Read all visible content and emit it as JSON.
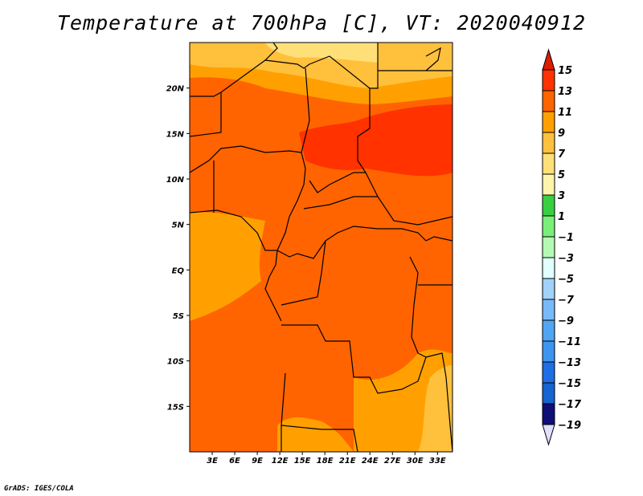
{
  "title": "Temperature at 700hPa [C], VT: 2020040912",
  "footer": "GrADS: IGES/COLA",
  "map": {
    "lat_labels": [
      "20N",
      "15N",
      "10N",
      "5N",
      "EQ",
      "5S",
      "10S",
      "15S"
    ],
    "lat_values": [
      20,
      15,
      10,
      5,
      0,
      -5,
      -10,
      -15
    ],
    "lon_labels": [
      "3E",
      "6E",
      "9E",
      "12E",
      "15E",
      "18E",
      "21E",
      "24E",
      "27E",
      "30E",
      "33E"
    ],
    "lon_values": [
      3,
      6,
      9,
      12,
      15,
      18,
      21,
      24,
      27,
      30,
      33
    ],
    "extent": {
      "lon": [
        0,
        35
      ],
      "lat": [
        -20,
        25
      ]
    },
    "fill_colors": {
      "c13_15": "#ff3200",
      "c11_13": "#ff6400",
      "c9_11": "#ffa000",
      "c7_9": "#ffc03c",
      "c5_7": "#ffe078"
    }
  },
  "colorbar": {
    "labels": [
      "15",
      "13",
      "11",
      "9",
      "7",
      "5",
      "3",
      "1",
      "−1",
      "−3",
      "−5",
      "−7",
      "−9",
      "−11",
      "−13",
      "−15",
      "−17",
      "−19"
    ],
    "colors": [
      "#ff3200",
      "#ff6400",
      "#ffa000",
      "#ffc03c",
      "#ffe078",
      "#fff5aa",
      "#38d040",
      "#78f078",
      "#b4fab4",
      "#e0ffff",
      "#a0d2fa",
      "#78b9fa",
      "#50a5f5",
      "#3c96f0",
      "#1e6ee6",
      "#1464d2",
      "#0f0f78"
    ],
    "over_color": "#dc1e00",
    "under_color": "#e0e0ff"
  }
}
